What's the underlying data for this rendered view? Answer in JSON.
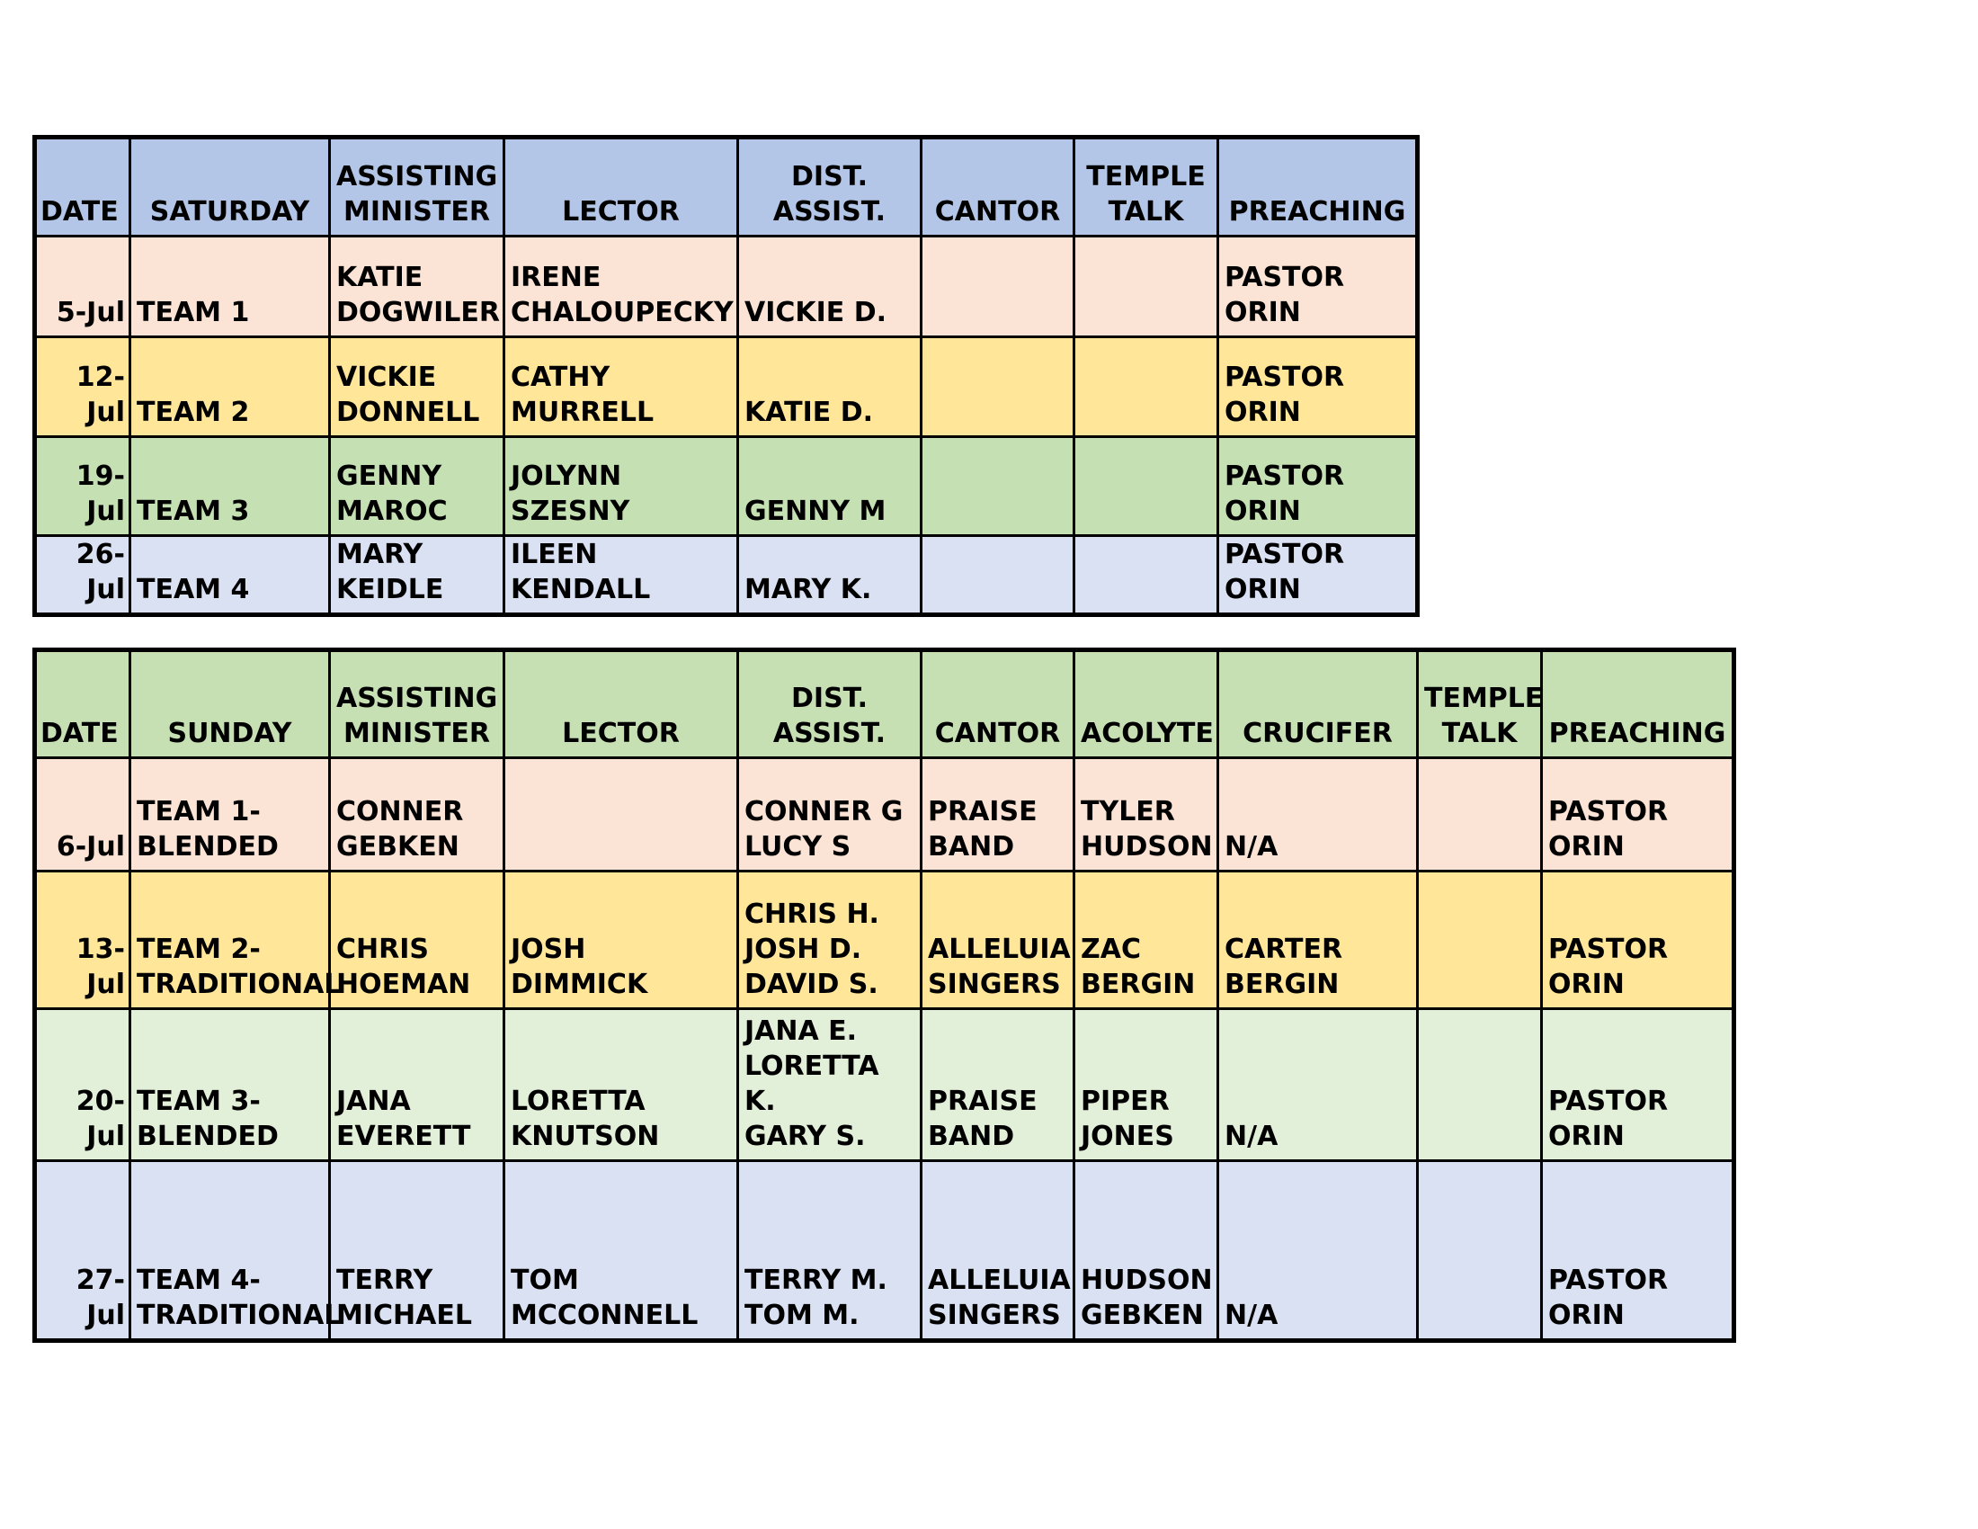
{
  "saturday": {
    "headers": [
      "DATE",
      "SATURDAY",
      "ASSISTING\nMINISTER",
      "LECTOR",
      "DIST. ASSIST.",
      "CANTOR",
      "TEMPLE\nTALK",
      "PREACHING"
    ],
    "rows": [
      {
        "date": "5-Jul",
        "team": "TEAM 1",
        "assisting": "KATIE\nDOGWILER",
        "lector": "IRENE\nCHALOUPECKY",
        "dist": "VICKIE D.",
        "cantor": "",
        "temple": "",
        "preaching": "PASTOR ORIN"
      },
      {
        "date": "12-Jul",
        "team": "TEAM 2",
        "assisting": "VICKIE\nDONNELL",
        "lector": "CATHY MURRELL",
        "dist": " KATIE D.",
        "cantor": "",
        "temple": "",
        "preaching": "PASTOR ORIN"
      },
      {
        "date": "19-Jul",
        "team": "TEAM 3",
        "assisting": "GENNY\nMAROC",
        "lector": "JOLYNN SZESNY",
        "dist": " GENNY M",
        "cantor": "",
        "temple": "",
        "preaching": "PASTOR ORIN"
      },
      {
        "date": "26-Jul",
        "team": "TEAM 4",
        "assisting": "MARY\nKEIDLE",
        "lector": "ILEEN KENDALL",
        "dist": " MARY K.",
        "cantor": "",
        "temple": "",
        "preaching": "PASTOR ORIN"
      }
    ]
  },
  "sunday": {
    "headers": [
      "DATE",
      "SUNDAY",
      "ASSISTING\nMINISTER",
      "LECTOR",
      "DIST. ASSIST.",
      "CANTOR",
      "ACOLYTE",
      "CRUCIFER",
      "TEMPLE\nTALK",
      "PREACHING"
    ],
    "rows": [
      {
        "date": "6-Jul",
        "team": "TEAM 1-\nBLENDED",
        "assisting": "CONNER\nGEBKEN",
        "lector": "",
        "dist": "CONNER G\nLUCY S",
        "cantor": "PRAISE\nBAND",
        "acolyte": "TYLER\nHUDSON",
        "crucifer": "N/A",
        "temple": "",
        "preaching": "PASTOR ORIN"
      },
      {
        "date": "13-Jul",
        "team": "TEAM 2-\nTRADITIONAL",
        "assisting": "CHRIS\nHOEMAN",
        "lector": "JOSH DIMMICK",
        "dist": "CHRIS H.\nJOSH D.\nDAVID S.",
        "cantor": "ALLELUIA\nSINGERS",
        "acolyte": "ZAC\nBERGIN",
        "crucifer": "CARTER\nBERGIN",
        "temple": "",
        "preaching": "PASTOR ORIN"
      },
      {
        "date": "20-Jul",
        "team": "TEAM 3-\nBLENDED",
        "assisting": "JANA\nEVERETT",
        "lector": "LORETTA\nKNUTSON",
        "dist": "JANA E.\nLORETTA K.\nGARY S.",
        "cantor": "PRAISE\nBAND",
        "acolyte": "PIPER\nJONES",
        "crucifer": "N/A",
        "temple": "",
        "preaching": "PASTOR ORIN"
      },
      {
        "date": "27-Jul",
        "team": "TEAM 4-\nTRADITIONAL",
        "assisting": "TERRY\nMICHAEL",
        "lector": "TOM\nMCCONNELL",
        "dist": "TERRY M.\nTOM M.",
        "cantor": "ALLELUIA\nSINGERS",
        "acolyte": "HUDSON\nGEBKEN",
        "crucifer": "N/A",
        "temple": "",
        "preaching": "PASTOR ORIN"
      }
    ]
  },
  "colors": {
    "saturday_header": "#b4c6e7",
    "sunday_header": "#c6e0b4",
    "team1": "#fbe4d5",
    "team2": "#ffe699",
    "team3_saturday": "#c5e0b3",
    "team3_sunday": "#e2efd9",
    "team4": "#d9e1f2"
  }
}
